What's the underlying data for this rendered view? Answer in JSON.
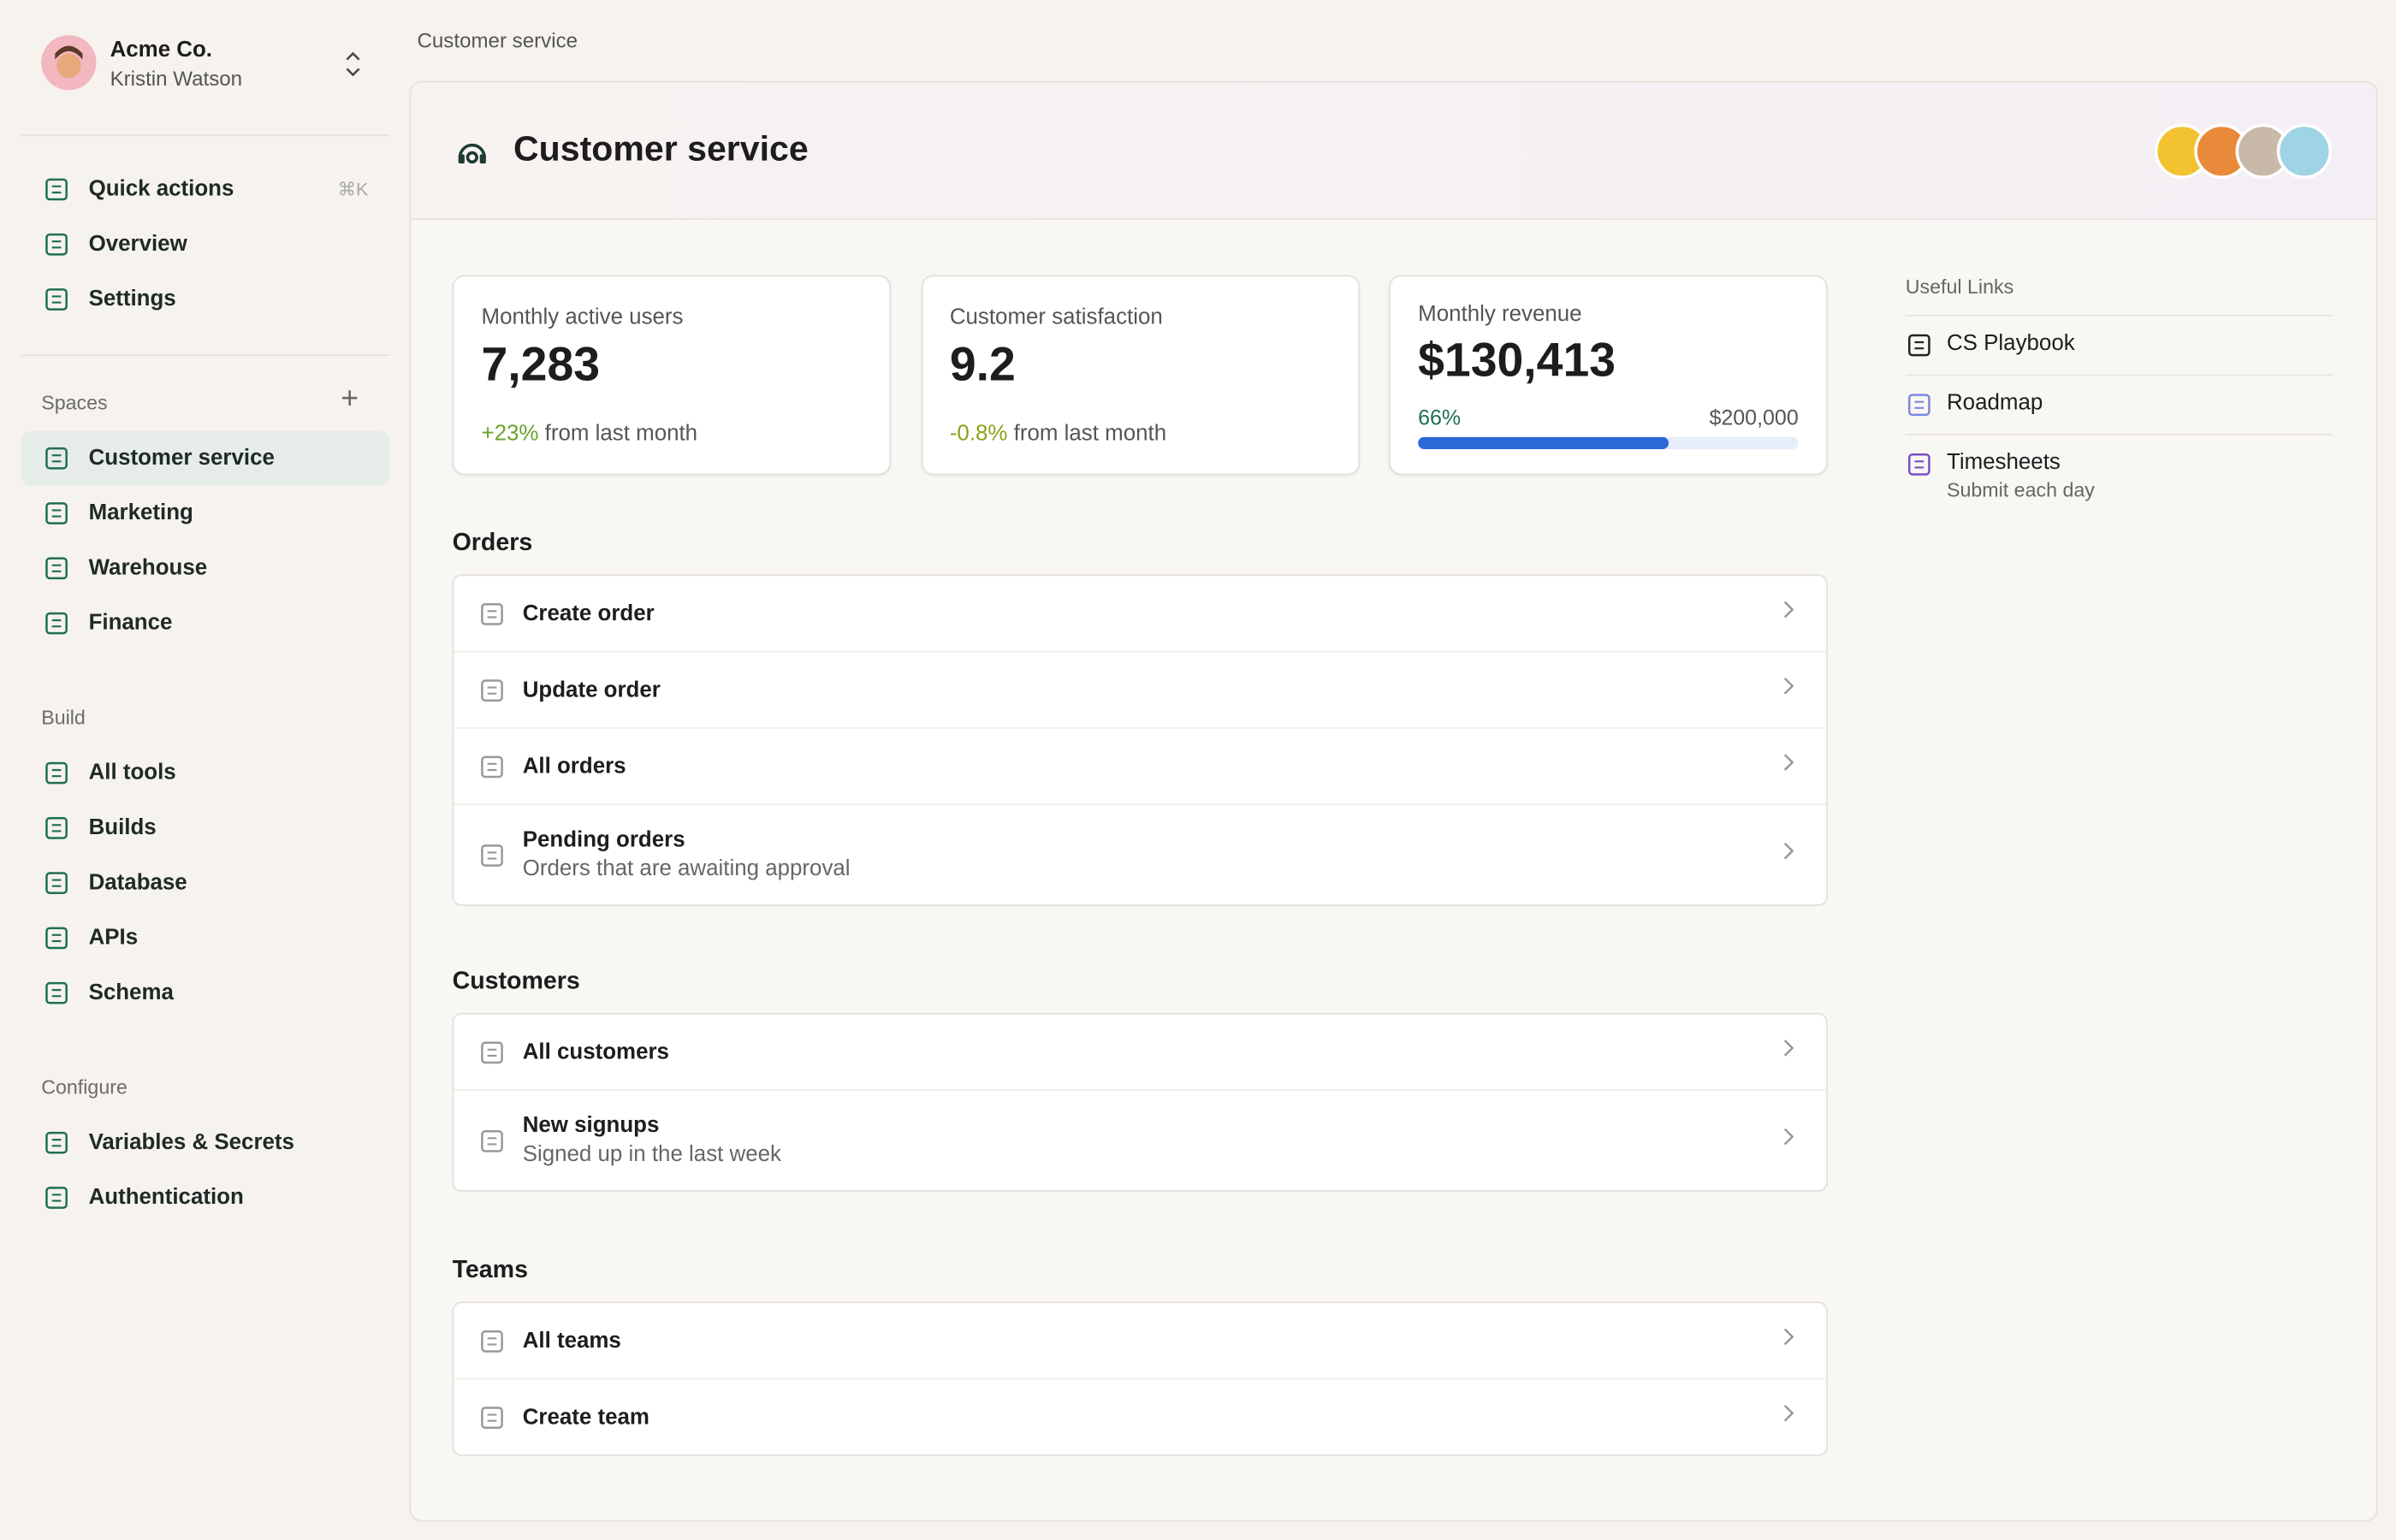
{
  "sidebar": {
    "account": {
      "company": "Acme Co.",
      "user": "Kristin Watson"
    },
    "nav": [
      {
        "label": "Quick actions",
        "shortcut": "⌘K"
      },
      {
        "label": "Overview"
      },
      {
        "label": "Settings"
      }
    ],
    "groups": [
      {
        "title": "Spaces",
        "items": [
          "Customer service",
          "Marketing",
          "Warehouse",
          "Finance"
        ]
      },
      {
        "title": "Build",
        "items": [
          "All tools",
          "Builds",
          "Database",
          "APIs",
          "Schema"
        ]
      },
      {
        "title": "Configure",
        "items": [
          "Variables & Secrets",
          "Authentication"
        ]
      }
    ]
  },
  "breadcrumb": "Customer service",
  "header": {
    "title": "Customer service"
  },
  "stats": [
    {
      "label": "Monthly active users",
      "value": "7,283",
      "change": "+23%",
      "note": "from last month"
    },
    {
      "label": "Customer satisfaction",
      "value": "9.2",
      "change": "-0.8%",
      "note": "from last month"
    },
    {
      "label": "Monthly revenue",
      "value": "$130,413",
      "progress": {
        "value": 66,
        "label": "66%"
      },
      "target": "$200,000"
    }
  ],
  "sections": [
    {
      "title": "Orders",
      "rows": [
        {
          "label": "Create order"
        },
        {
          "label": "Update order"
        },
        {
          "label": "All orders"
        },
        {
          "label": "Pending orders",
          "sub": "Orders that are awaiting approval"
        }
      ]
    },
    {
      "title": "Customers",
      "rows": [
        {
          "label": "All customers"
        },
        {
          "label": "New signups",
          "sub": "Signed up in the last week"
        }
      ]
    },
    {
      "title": "Teams",
      "rows": [
        {
          "label": "All teams"
        },
        {
          "label": "Create team"
        }
      ]
    }
  ],
  "links": {
    "title": "Useful Links",
    "items": [
      {
        "label": "CS Playbook"
      },
      {
        "label": "Roadmap"
      },
      {
        "label": "Timesheets",
        "sub": "Submit each day"
      }
    ]
  }
}
